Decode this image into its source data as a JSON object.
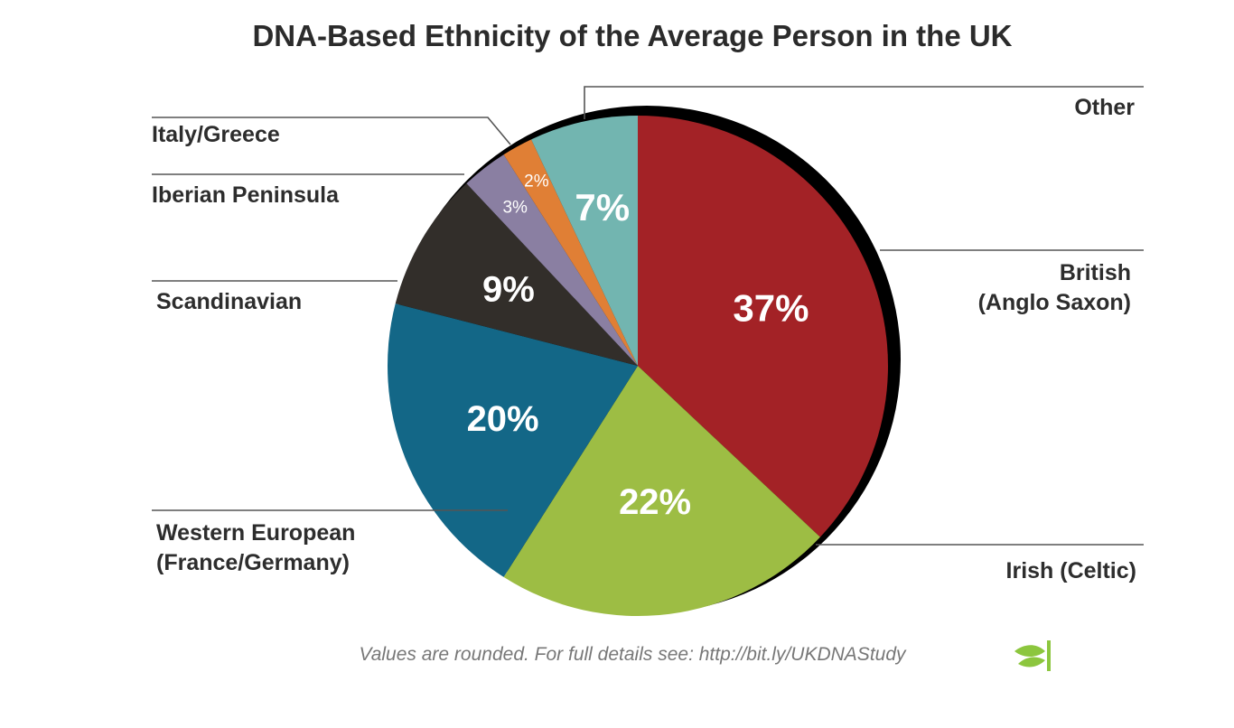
{
  "chart_data": {
    "type": "pie",
    "title": "DNA-Based Ethnicity of the Average Person in the UK",
    "categories": [
      "British\n(Anglo Saxon)",
      "Irish (Celtic)",
      "Western European\n(France/Germany)",
      "Scandinavian",
      "Iberian Peninsula",
      "Italy/Greece",
      "Other"
    ],
    "values": [
      37,
      22,
      20,
      9,
      3,
      2,
      7
    ],
    "value_labels": [
      "37%",
      "22%",
      "20%",
      "9%",
      "3%",
      "2%",
      "7%"
    ],
    "colors": [
      "#a32226",
      "#9dbd44",
      "#136787",
      "#322e2a",
      "#8a7fa2",
      "#e07f35",
      "#72b5b0"
    ],
    "start_angle_deg": 0,
    "direction": "clockwise",
    "footnote": "Values are rounded. For full details see: http://bit.ly/UKDNAStudy"
  },
  "logo_icon": "leaf-sprout-icon",
  "logo_color": "#8cc63e"
}
